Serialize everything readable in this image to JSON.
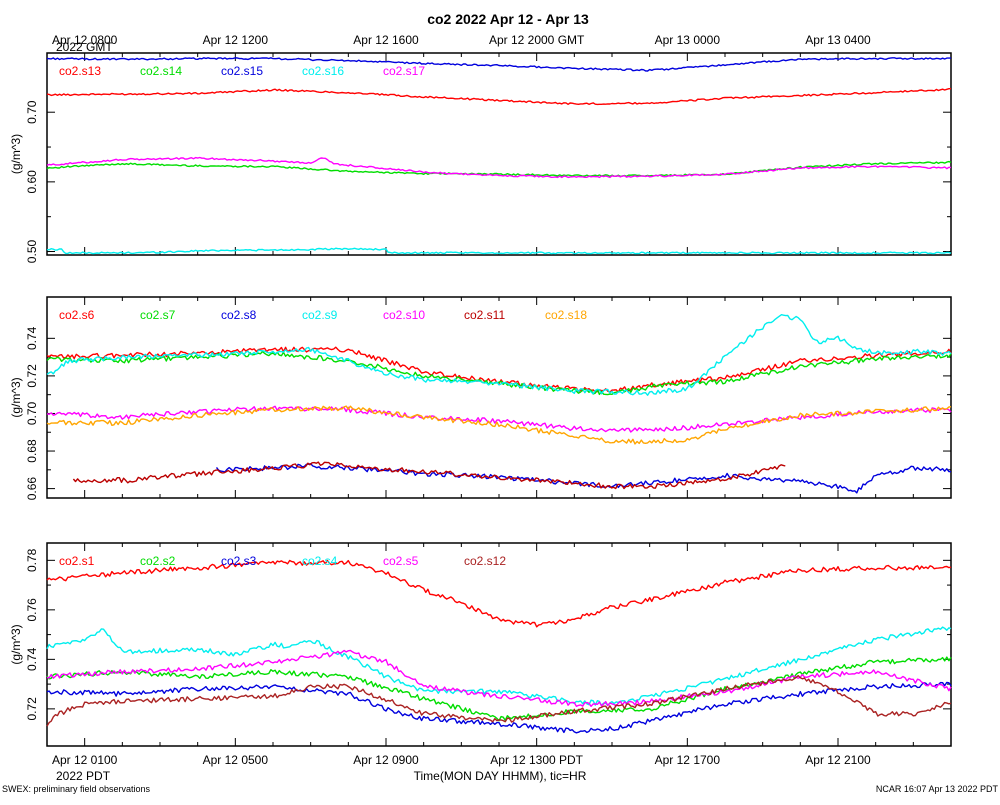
{
  "chart_data": {
    "type": "line",
    "title": "co2 2022 Apr 12 - Apr 13",
    "x_range_hours": [
      0,
      24
    ],
    "top_axis": {
      "timezone": "GMT",
      "year_label": "2022 GMT",
      "ticks": [
        {
          "hour": 1,
          "label": "Apr 12 0800"
        },
        {
          "hour": 5,
          "label": "Apr 12 1200"
        },
        {
          "hour": 9,
          "label": "Apr 12 1600"
        },
        {
          "hour": 13,
          "label": "Apr 12 2000 GMT"
        },
        {
          "hour": 17,
          "label": "Apr 13 0000"
        },
        {
          "hour": 21,
          "label": "Apr 13 0400"
        }
      ]
    },
    "bottom_axis": {
      "timezone": "PDT",
      "year_label": "2022 PDT",
      "xlabel": "Time(MON DAY HHMM), tic=HR",
      "ticks": [
        {
          "hour": 1,
          "label": "Apr 12 0100"
        },
        {
          "hour": 5,
          "label": "Apr 12 0500"
        },
        {
          "hour": 9,
          "label": "Apr 12 0900"
        },
        {
          "hour": 13,
          "label": "Apr 12 1300 PDT"
        },
        {
          "hour": 17,
          "label": "Apr 12 1700"
        },
        {
          "hour": 21,
          "label": "Apr 12 2100"
        }
      ]
    },
    "panels": [
      {
        "ylabel": "(g/m^3)",
        "ylim": [
          0.495,
          0.785
        ],
        "yticks": [
          0.5,
          0.6,
          0.7
        ],
        "series": [
          {
            "name": "co2.s13",
            "color": "#ff0000",
            "x": [
              0,
              2,
              4,
              6,
              8,
              10,
              12,
              14,
              16,
              18,
              20,
              22,
              24
            ],
            "y": [
              0.725,
              0.726,
              0.727,
              0.732,
              0.728,
              0.722,
              0.717,
              0.712,
              0.713,
              0.72,
              0.724,
              0.728,
              0.733
            ]
          },
          {
            "name": "co2.s14",
            "color": "#00dd00",
            "x": [
              0,
              2,
              4,
              6,
              8,
              10,
              12,
              14,
              16,
              18,
              20,
              22,
              24
            ],
            "y": [
              0.62,
              0.626,
              0.623,
              0.622,
              0.615,
              0.612,
              0.611,
              0.609,
              0.609,
              0.611,
              0.621,
              0.626,
              0.628
            ]
          },
          {
            "name": "co2.s15",
            "color": "#0000dd",
            "x": [
              0,
              2,
              4,
              6,
              8,
              10,
              12,
              14,
              16,
              18,
              20,
              22,
              24
            ],
            "y": [
              0.777,
              0.776,
              0.777,
              0.777,
              0.774,
              0.77,
              0.767,
              0.763,
              0.76,
              0.768,
              0.776,
              0.777,
              0.777
            ]
          },
          {
            "name": "co2.s16",
            "color": "#00eeee",
            "x": [
              0,
              0.4,
              0.5,
              1,
              2,
              3,
              4,
              5,
              6,
              7,
              8,
              9,
              9.05,
              10,
              12,
              14,
              16,
              18,
              20,
              22,
              24
            ],
            "y": [
              0.503,
              0.503,
              0.498,
              0.498,
              0.498,
              0.499,
              0.501,
              0.502,
              0.502,
              0.503,
              0.504,
              0.503,
              0.498,
              0.498,
              0.498,
              0.498,
              0.498,
              0.498,
              0.498,
              0.498,
              0.498
            ]
          },
          {
            "name": "co2.s17",
            "color": "#ff00ff",
            "x": [
              0,
              2,
              4,
              6,
              7,
              7.3,
              7.6,
              8,
              10,
              12,
              14,
              16,
              18,
              20,
              22,
              24
            ],
            "y": [
              0.624,
              0.632,
              0.634,
              0.63,
              0.627,
              0.636,
              0.626,
              0.624,
              0.614,
              0.609,
              0.607,
              0.608,
              0.611,
              0.62,
              0.622,
              0.62
            ]
          }
        ]
      },
      {
        "ylabel": "(g/m^3)",
        "ylim": [
          0.655,
          0.762
        ],
        "yticks": [
          0.66,
          0.68,
          0.7,
          0.72,
          0.74
        ],
        "series": [
          {
            "name": "co2.s6",
            "color": "#ff0000",
            "x": [
              0,
              2,
              4,
              6,
              8,
              10,
              12,
              14,
              15,
              16,
              17,
              18,
              20,
              22,
              24
            ],
            "y": [
              0.73,
              0.731,
              0.732,
              0.734,
              0.734,
              0.722,
              0.717,
              0.713,
              0.712,
              0.715,
              0.717,
              0.719,
              0.728,
              0.731,
              0.733
            ]
          },
          {
            "name": "co2.s7",
            "color": "#00dd00",
            "x": [
              0,
              2,
              4,
              6,
              8,
              10,
              12,
              14,
              15,
              16,
              17,
              18,
              20,
              22,
              24
            ],
            "y": [
              0.729,
              0.728,
              0.73,
              0.732,
              0.728,
              0.72,
              0.716,
              0.712,
              0.711,
              0.714,
              0.716,
              0.717,
              0.725,
              0.729,
              0.731
            ]
          },
          {
            "name": "co2.s8",
            "color": "#0000dd",
            "x": [
              4.5,
              6,
              7,
              8,
              10,
              12,
              14,
              15,
              16,
              18,
              19,
              20,
              21,
              21.5,
              22,
              23,
              24
            ],
            "y": [
              0.67,
              0.671,
              0.672,
              0.671,
              0.668,
              0.666,
              0.663,
              0.661,
              0.663,
              0.667,
              0.665,
              0.664,
              0.661,
              0.659,
              0.667,
              0.671,
              0.67
            ]
          },
          {
            "name": "co2.s9",
            "color": "#00eeee",
            "x": [
              0,
              0.6,
              2,
              4,
              6,
              7,
              8,
              9,
              10,
              12,
              14,
              16,
              17,
              18,
              19,
              19.5,
              20,
              20.3,
              20.5,
              21,
              21.5,
              22,
              23,
              24
            ],
            "y": [
              0.72,
              0.728,
              0.73,
              0.731,
              0.733,
              0.734,
              0.728,
              0.721,
              0.718,
              0.716,
              0.712,
              0.711,
              0.713,
              0.73,
              0.746,
              0.752,
              0.75,
              0.741,
              0.738,
              0.74,
              0.735,
              0.732,
              0.733,
              0.732
            ]
          },
          {
            "name": "co2.s10",
            "color": "#ff00ff",
            "x": [
              0,
              2,
              4,
              6,
              8,
              10,
              12,
              14,
              16,
              18,
              20,
              22,
              24
            ],
            "y": [
              0.7,
              0.698,
              0.701,
              0.703,
              0.702,
              0.698,
              0.696,
              0.692,
              0.691,
              0.694,
              0.698,
              0.701,
              0.702
            ]
          },
          {
            "name": "co2.s11",
            "color": "#bb0000",
            "x": [
              0.7,
              1.2,
              1.4,
              1.8,
              2.2,
              2.8,
              7.3,
              8,
              10,
              12,
              14,
              15,
              16,
              18,
              19.6
            ],
            "y": [
              0.664,
              0.664,
              0.664,
              0.665,
              0.664,
              0.666,
              0.673,
              0.672,
              0.669,
              0.666,
              0.663,
              0.661,
              0.661,
              0.665,
              0.672
            ]
          },
          {
            "name": "co2.s18",
            "color": "#ffa500",
            "x": [
              0,
              1,
              2,
              4,
              6,
              8,
              10,
              12,
              14,
              15,
              16,
              17,
              18,
              20,
              22,
              24
            ],
            "y": [
              0.695,
              0.695,
              0.695,
              0.699,
              0.702,
              0.703,
              0.698,
              0.694,
              0.688,
              0.685,
              0.685,
              0.686,
              0.692,
              0.699,
              0.701,
              0.703
            ]
          }
        ]
      },
      {
        "ylabel": "(g/m^3)",
        "ylim": [
          0.705,
          0.787
        ],
        "yticks": [
          0.72,
          0.74,
          0.76,
          0.78
        ],
        "series": [
          {
            "name": "co2.s1",
            "color": "#ff0000",
            "x": [
              0,
              2,
              4,
              6,
              8,
              9,
              10,
              11,
              12,
              13,
              14,
              15,
              16,
              18,
              20,
              22,
              24
            ],
            "y": [
              0.772,
              0.775,
              0.777,
              0.779,
              0.779,
              0.775,
              0.768,
              0.763,
              0.756,
              0.754,
              0.756,
              0.761,
              0.764,
              0.771,
              0.776,
              0.777,
              0.777
            ]
          },
          {
            "name": "co2.s2",
            "color": "#00dd00",
            "x": [
              0,
              2,
              4,
              6,
              8,
              10,
              12,
              14,
              16,
              18,
              20,
              22,
              24
            ],
            "y": [
              0.733,
              0.735,
              0.733,
              0.735,
              0.733,
              0.724,
              0.716,
              0.719,
              0.72,
              0.728,
              0.734,
              0.739,
              0.74
            ]
          },
          {
            "name": "co2.s3",
            "color": "#0000dd",
            "x": [
              0,
              2,
              4,
              6,
              8,
              9,
              10,
              12,
              14,
              15,
              16,
              18,
              20,
              22,
              24
            ],
            "y": [
              0.727,
              0.726,
              0.728,
              0.729,
              0.726,
              0.72,
              0.716,
              0.714,
              0.711,
              0.712,
              0.715,
              0.722,
              0.726,
              0.729,
              0.73
            ]
          },
          {
            "name": "co2.s4",
            "color": "#00eeee",
            "x": [
              0,
              1,
              1.5,
              2,
              4,
              5,
              6,
              6.5,
              7,
              8,
              9,
              10,
              12,
              14,
              15,
              16,
              18,
              20,
              22,
              24
            ],
            "y": [
              0.745,
              0.748,
              0.752,
              0.743,
              0.744,
              0.742,
              0.746,
              0.745,
              0.748,
              0.741,
              0.733,
              0.727,
              0.727,
              0.723,
              0.722,
              0.725,
              0.732,
              0.74,
              0.748,
              0.753
            ]
          },
          {
            "name": "co2.s5",
            "color": "#ff00ff",
            "x": [
              0,
              2,
              4,
              6,
              8,
              9,
              10,
              12,
              14,
              15,
              16,
              18,
              20,
              22,
              24
            ],
            "y": [
              0.733,
              0.735,
              0.736,
              0.739,
              0.743,
              0.739,
              0.729,
              0.725,
              0.722,
              0.722,
              0.723,
              0.727,
              0.733,
              0.735,
              0.728
            ]
          },
          {
            "name": "co2.s12",
            "color": "#aa2222",
            "x": [
              0,
              0.3,
              1,
              2,
              4,
              6,
              7,
              8,
              9,
              10,
              12,
              14,
              16,
              18,
              20,
              21,
              22,
              23,
              24
            ],
            "y": [
              0.713,
              0.718,
              0.722,
              0.723,
              0.724,
              0.725,
              0.729,
              0.729,
              0.724,
              0.718,
              0.715,
              0.719,
              0.722,
              0.728,
              0.733,
              0.727,
              0.718,
              0.718,
              0.723
            ]
          }
        ]
      }
    ]
  },
  "footer": {
    "left_note": "SWEX: preliminary field observations",
    "right_note": "NCAR 16:07 Apr 13 2022 PDT"
  }
}
